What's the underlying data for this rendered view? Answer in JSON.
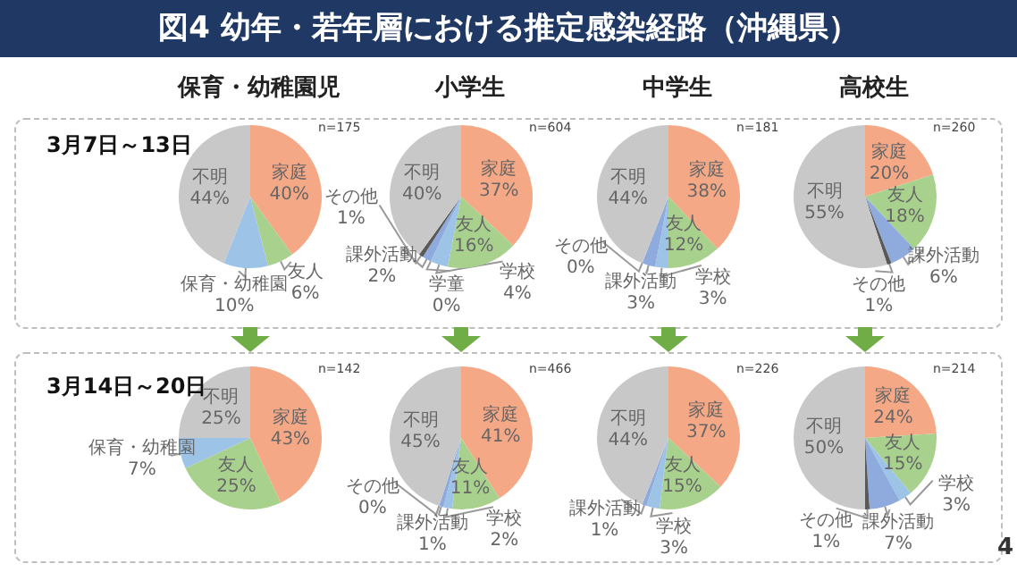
{
  "chart_data": [
    {
      "type": "other",
      "title": "図4 幼年・若年層における推定感染経路（沖縄県）",
      "annotations": [
        "4"
      ]
    },
    {
      "type": "pie",
      "title": "保育・幼稚園児",
      "subtitle": "3月7日～13日",
      "annotations": [
        "n=175"
      ],
      "categories": [
        "家庭",
        "友人",
        "保育・幼稚園",
        "不明"
      ],
      "values": [
        40,
        6,
        10,
        44
      ],
      "value_labels": [
        "40%",
        "6%",
        "10%",
        "44%"
      ],
      "colors": [
        "#f4a886",
        "#a9d18e",
        "#9dc3e6",
        "#c8c8c8"
      ]
    },
    {
      "type": "pie",
      "title": "小学生",
      "annotations": [
        "n=604"
      ],
      "categories": [
        "家庭",
        "友人",
        "学校",
        "学童",
        "課外活動",
        "その他",
        "不明"
      ],
      "values": [
        37,
        16,
        4,
        0,
        2,
        1,
        40
      ],
      "value_labels": [
        "37%",
        "16%",
        "4%",
        "0%",
        "2%",
        "1%",
        "40%"
      ],
      "colors": [
        "#f4a886",
        "#a9d18e",
        "#9dc3e6",
        "#ffc000",
        "#8faadc",
        "#595959",
        "#c8c8c8"
      ]
    },
    {
      "type": "pie",
      "title": "中学生",
      "annotations": [
        "n=181"
      ],
      "categories": [
        "家庭",
        "友人",
        "学校",
        "課外活動",
        "その他",
        "不明"
      ],
      "values": [
        38,
        12,
        3,
        3,
        0,
        44
      ],
      "value_labels": [
        "38%",
        "12%",
        "3%",
        "3%",
        "0%",
        "44%"
      ],
      "colors": [
        "#f4a886",
        "#a9d18e",
        "#9dc3e6",
        "#8faadc",
        "#595959",
        "#c8c8c8"
      ]
    },
    {
      "type": "pie",
      "title": "高校生",
      "annotations": [
        "n=260"
      ],
      "categories": [
        "家庭",
        "友人",
        "課外活動",
        "その他",
        "不明"
      ],
      "values": [
        20,
        18,
        6,
        1,
        55
      ],
      "value_labels": [
        "20%",
        "18%",
        "6%",
        "1%",
        "55%"
      ],
      "colors": [
        "#f4a886",
        "#a9d18e",
        "#8faadc",
        "#595959",
        "#c8c8c8"
      ]
    },
    {
      "type": "pie",
      "subtitle": "3月14日～20日",
      "annotations": [
        "n=142"
      ],
      "categories": [
        "家庭",
        "友人",
        "保育・幼稚園",
        "不明"
      ],
      "values": [
        43,
        25,
        7,
        25
      ],
      "value_labels": [
        "43%",
        "25%",
        "7%",
        "25%"
      ],
      "colors": [
        "#f4a886",
        "#a9d18e",
        "#9dc3e6",
        "#c8c8c8"
      ]
    },
    {
      "type": "pie",
      "annotations": [
        "n=466"
      ],
      "categories": [
        "家庭",
        "友人",
        "学校",
        "課外活動",
        "その他",
        "不明"
      ],
      "values": [
        41,
        11,
        2,
        1,
        0,
        45
      ],
      "value_labels": [
        "41%",
        "11%",
        "2%",
        "1%",
        "0%",
        "45%"
      ],
      "colors": [
        "#f4a886",
        "#a9d18e",
        "#9dc3e6",
        "#8faadc",
        "#595959",
        "#c8c8c8"
      ]
    },
    {
      "type": "pie",
      "annotations": [
        "n=226"
      ],
      "categories": [
        "家庭",
        "友人",
        "学校",
        "課外活動",
        "不明"
      ],
      "values": [
        37,
        15,
        3,
        1,
        44
      ],
      "value_labels": [
        "37%",
        "15%",
        "3%",
        "1%",
        "44%"
      ],
      "colors": [
        "#f4a886",
        "#a9d18e",
        "#9dc3e6",
        "#8faadc",
        "#c8c8c8"
      ]
    },
    {
      "type": "pie",
      "annotations": [
        "n=214"
      ],
      "categories": [
        "家庭",
        "友人",
        "学校",
        "課外活動",
        "その他",
        "不明"
      ],
      "values": [
        24,
        15,
        3,
        7,
        1,
        50
      ],
      "value_labels": [
        "24%",
        "15%",
        "3%",
        "7%",
        "1%",
        "50%"
      ],
      "colors": [
        "#f4a886",
        "#a9d18e",
        "#9dc3e6",
        "#8faadc",
        "#595959",
        "#c8c8c8"
      ]
    }
  ]
}
